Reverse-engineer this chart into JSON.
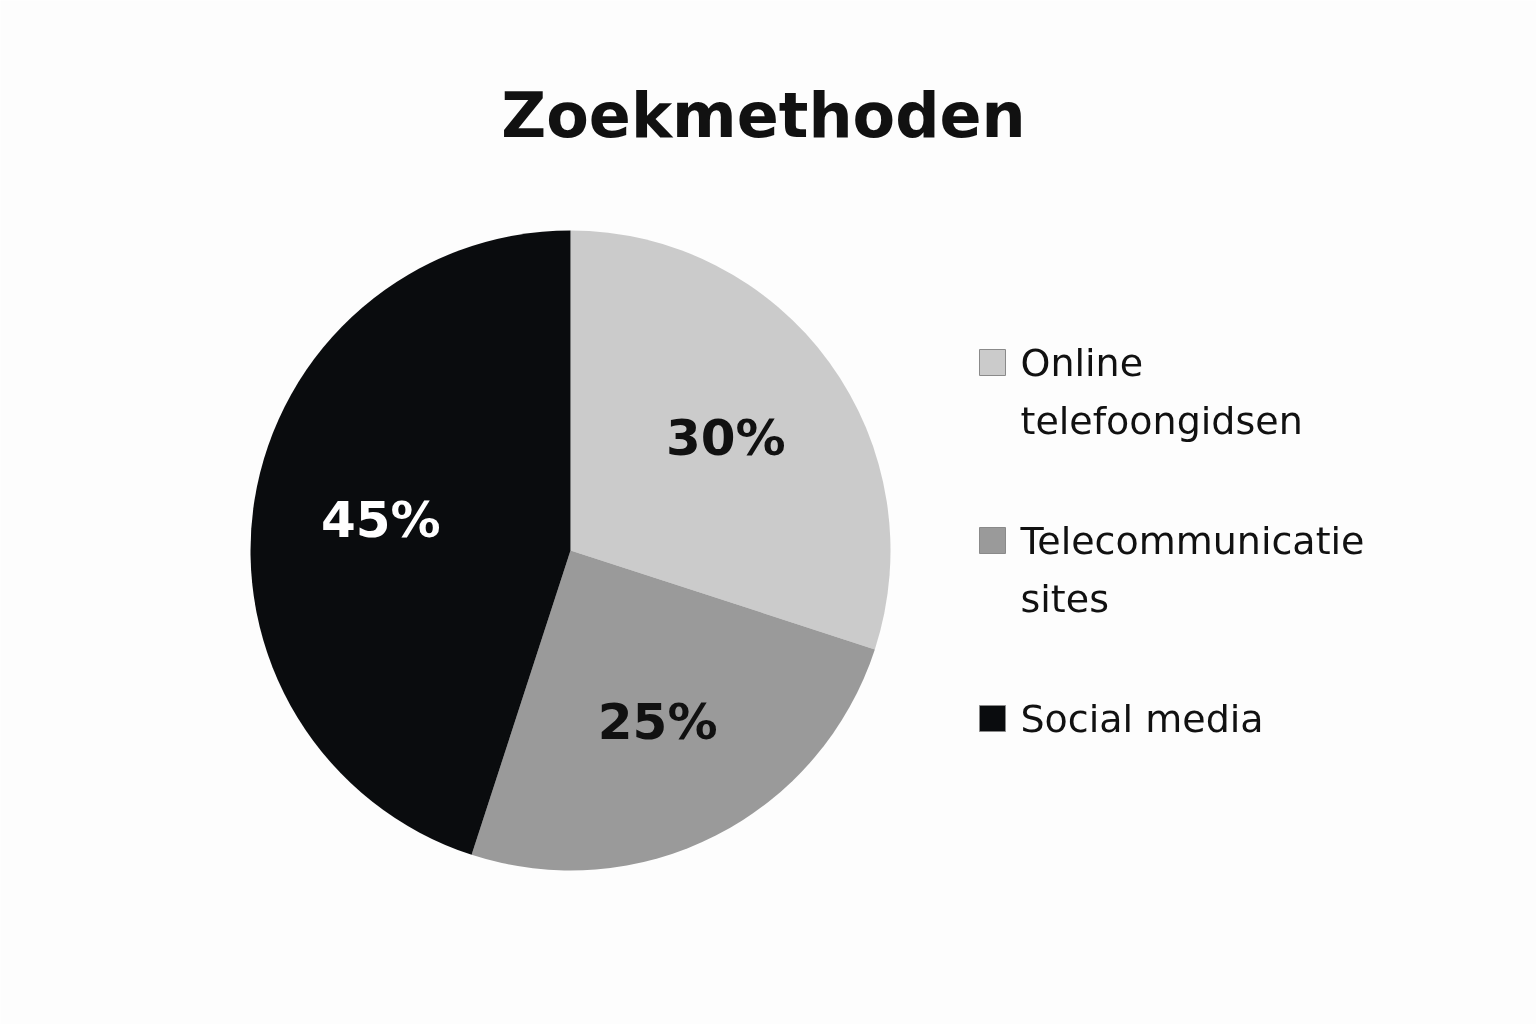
{
  "chart_data": {
    "type": "pie",
    "title": "Zoekmethoden",
    "categories": [
      "Online telefoongidsen",
      "Telecommunicatie sites",
      "Social media"
    ],
    "values": [
      30,
      25,
      45
    ],
    "colors": [
      "#cbcbcb",
      "#9a9a9a",
      "#0a0c0e"
    ],
    "value_labels": [
      "30%",
      "25%",
      "45%"
    ],
    "legend": "right"
  }
}
